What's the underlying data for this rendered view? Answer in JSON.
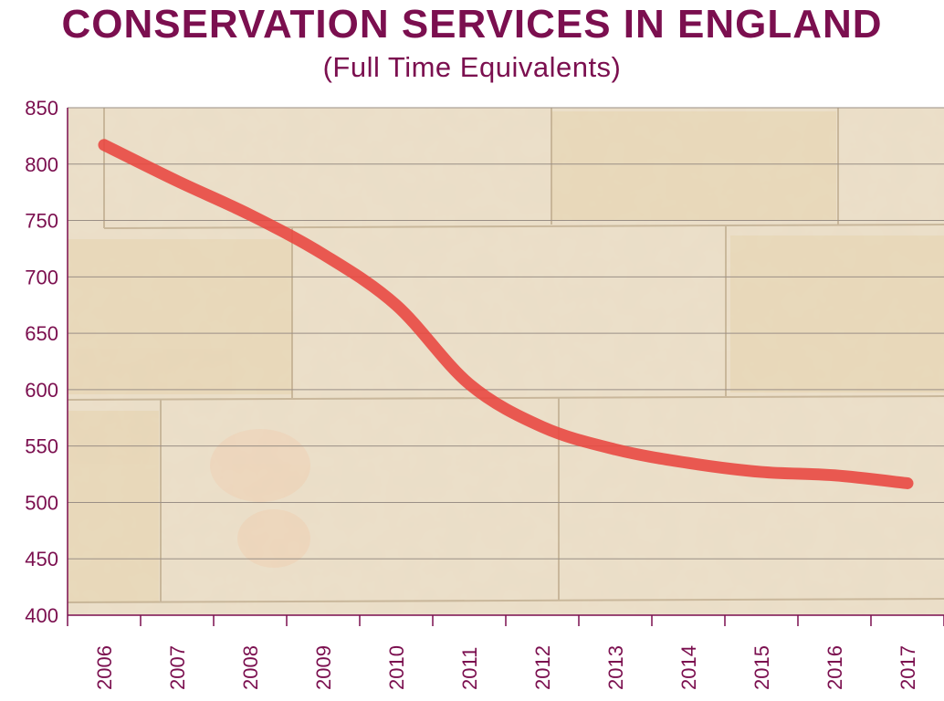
{
  "header": {
    "title": "CONSERVATION SERVICES IN ENGLAND",
    "subtitle": "(Full Time Equivalents)"
  },
  "colors": {
    "title": "#7b0f4f",
    "line": "#e8463f",
    "axis": "#7b0f4f",
    "background_stone": "#e9dcc5"
  },
  "chart_data": {
    "type": "line",
    "title": "CONSERVATION SERVICES IN ENGLAND",
    "subtitle": "(Full Time Equivalents)",
    "xlabel": "",
    "ylabel": "",
    "categories": [
      "2006",
      "2007",
      "2008",
      "2009",
      "2010",
      "2011",
      "2012",
      "2013",
      "2014",
      "2015",
      "2016",
      "2017"
    ],
    "series": [
      {
        "values": [
          817,
          785,
          755,
          720,
          675,
          605,
          567,
          547,
          535,
          527,
          524,
          517
        ]
      }
    ],
    "ylim": [
      400,
      850
    ],
    "yticks": [
      "400",
      "450",
      "500",
      "550",
      "600",
      "650",
      "700",
      "750",
      "800",
      "850"
    ],
    "grid": true,
    "legend": "none"
  }
}
